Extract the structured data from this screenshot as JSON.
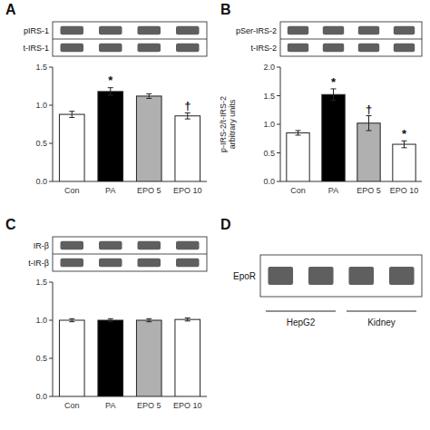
{
  "chart_data": [
    {
      "type": "bar",
      "title": "A",
      "blot_labels": [
        "pIRS-1",
        "t-IRS-1"
      ],
      "categories": [
        "Con",
        "PA",
        "EPO 5",
        "EPO 10"
      ],
      "values": [
        0.88,
        1.18,
        1.12,
        0.86
      ],
      "errors": [
        0.04,
        0.05,
        0.03,
        0.04
      ],
      "colors": [
        "white",
        "black",
        "#b0b0b0",
        "white"
      ],
      "ylim": [
        0.0,
        1.5
      ],
      "yticks": [
        {
          "value": 0.0,
          "label": "0.0"
        },
        0.5,
        {
          "value": 1.0,
          "label": "1.0"
        },
        1.5
      ],
      "annotations": [
        null,
        "*",
        null,
        "†"
      ]
    },
    {
      "type": "bar",
      "title": "B",
      "blot_labels": [
        "pSer-IRS-2",
        "t-IRS-2"
      ],
      "categories": [
        "Con",
        "PA",
        "EPO 5",
        "EPO 10"
      ],
      "values": [
        0.85,
        1.52,
        1.02,
        0.65
      ],
      "errors": [
        0.04,
        0.1,
        0.13,
        0.06
      ],
      "colors": [
        "white",
        "black",
        "#b0b0b0",
        "white"
      ],
      "ylim": [
        0.0,
        2.0
      ],
      "yticks": [
        {
          "value": 0.0,
          "label": "0.0"
        },
        0.5,
        {
          "value": 1.0,
          "label": "1.0"
        },
        1.5,
        {
          "value": 2.0,
          "label": "2.0"
        }
      ],
      "ylabel": "p-IRS-2/t-IRS-2\narbitrary units",
      "annotations": [
        null,
        "*",
        "†",
        "*"
      ]
    },
    {
      "type": "bar",
      "title": "C",
      "blot_labels": [
        "IR-β",
        "t-IR-β"
      ],
      "categories": [
        "Con",
        "PA",
        "EPO 5",
        "EPO 10"
      ],
      "values": [
        1.0,
        1.0,
        1.0,
        1.01
      ],
      "errors": [
        0.02,
        0.02,
        0.02,
        0.02
      ],
      "colors": [
        "white",
        "black",
        "#b0b0b0",
        "white"
      ],
      "ylim": [
        0.0,
        1.5
      ],
      "yticks": [
        {
          "value": 0.0,
          "label": "0.0"
        },
        0.5,
        {
          "value": 1.0,
          "label": "1.0"
        },
        1.5
      ]
    },
    {
      "type": "blot",
      "title": "D",
      "blot_labels": [
        "EpoR"
      ],
      "categories": [
        "HepG2",
        "Kidney"
      ]
    }
  ]
}
